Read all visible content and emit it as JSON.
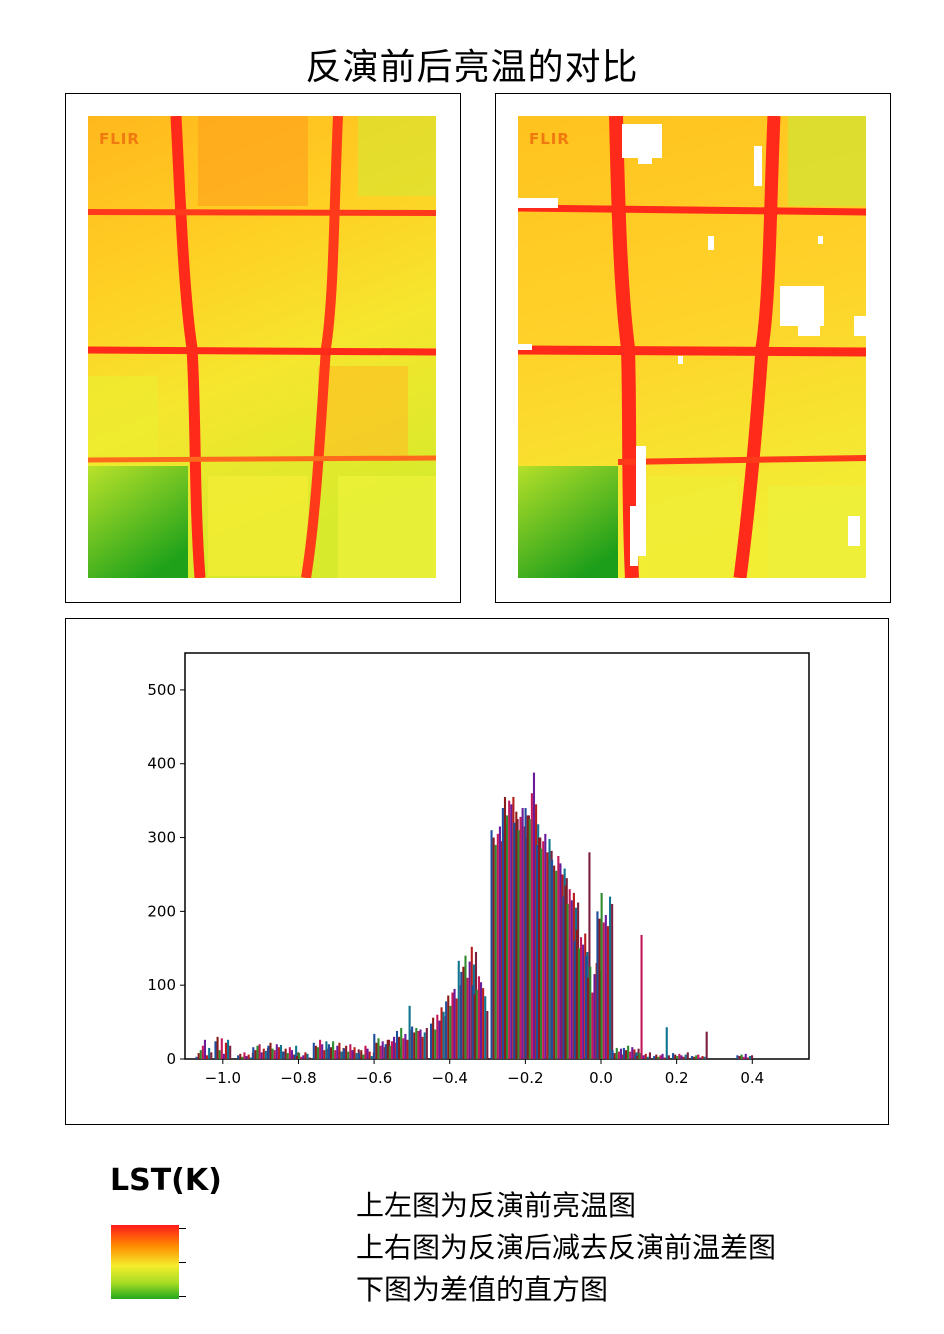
{
  "title": "反演前后亮温的对比",
  "images": {
    "left_logo": "FLIR",
    "right_logo": "FLIR"
  },
  "legend": {
    "title": "LST(K)",
    "colors": [
      "#ff1a1a",
      "#ff8a00",
      "#f6ec2c",
      "#a8dd24",
      "#22a81c"
    ]
  },
  "notes": [
    "上左图为反演前亮温图",
    "上右图为反演后减去反演前温差图",
    "下图为差值的直方图"
  ],
  "chart_data": {
    "type": "bar",
    "title": "",
    "xlabel": "",
    "ylabel": "",
    "xlim": [
      -1.1,
      0.55
    ],
    "ylim": [
      0,
      550
    ],
    "xticks": [
      -1.0,
      -0.8,
      -0.6,
      -0.4,
      -0.2,
      0.0,
      0.2,
      0.4
    ],
    "xtick_labels": [
      "−1.0",
      "−0.8",
      "−0.6",
      "−0.4",
      "−0.2",
      "0.0",
      "0.2",
      "0.4"
    ],
    "yticks": [
      0,
      100,
      200,
      300,
      400,
      500
    ],
    "ytick_labels": [
      "0",
      "100",
      "200",
      "300",
      "400",
      "500"
    ],
    "grid": false,
    "colors": [
      "#1f4e9c",
      "#8b1c1c",
      "#2e8b2e",
      "#c2185b",
      "#6a1b9a",
      "#b71c1c",
      "#0e7490",
      "#7a1f3d"
    ],
    "bins": [
      {
        "x": -1.05,
        "values": [
          3,
          8,
          12,
          18,
          26,
          5,
          15,
          9
        ]
      },
      {
        "x": -1.0,
        "values": [
          24,
          30,
          12,
          28,
          7,
          22,
          26,
          18
        ]
      },
      {
        "x": -0.94,
        "values": [
          5,
          7,
          3,
          9,
          4,
          6,
          2,
          8
        ]
      },
      {
        "x": -0.9,
        "values": [
          16,
          12,
          18,
          20,
          9,
          14,
          11,
          15
        ]
      },
      {
        "x": -0.86,
        "values": [
          18,
          22,
          14,
          12,
          20,
          16,
          19,
          10
        ]
      },
      {
        "x": -0.82,
        "values": [
          10,
          14,
          8,
          16,
          12,
          6,
          18,
          9
        ]
      },
      {
        "x": -0.79,
        "values": [
          6,
          4,
          8,
          3,
          5,
          9,
          7,
          2
        ]
      },
      {
        "x": -0.74,
        "values": [
          22,
          18,
          16,
          26,
          20,
          12,
          24,
          14
        ]
      },
      {
        "x": -0.7,
        "values": [
          20,
          16,
          24,
          12,
          18,
          22,
          10,
          15
        ]
      },
      {
        "x": -0.66,
        "values": [
          14,
          18,
          10,
          20,
          12,
          16,
          8,
          13
        ]
      },
      {
        "x": -0.62,
        "values": [
          8,
          12,
          6,
          18,
          14,
          10,
          4,
          9
        ]
      },
      {
        "x": -0.58,
        "values": [
          34,
          22,
          28,
          18,
          24,
          16,
          20,
          26
        ]
      },
      {
        "x": -0.55,
        "values": [
          20,
          26,
          18,
          24,
          30,
          22,
          28,
          16
        ]
      },
      {
        "x": -0.52,
        "values": [
          38,
          30,
          42,
          28,
          34,
          26,
          72,
          40
        ]
      },
      {
        "x": -0.48,
        "values": [
          44,
          36,
          42,
          38,
          40,
          30,
          36,
          42
        ]
      },
      {
        "x": -0.43,
        "values": [
          48,
          56,
          40,
          60,
          52,
          70,
          64,
          58
        ]
      },
      {
        "x": -0.39,
        "values": [
          78,
          86,
          72,
          90,
          95,
          82,
          133,
          100
        ]
      },
      {
        "x": -0.35,
        "values": [
          118,
          125,
          140,
          110,
          132,
          152,
          128,
          145
        ]
      },
      {
        "x": -0.32,
        "values": [
          100,
          88,
          94,
          112,
          104,
          96,
          85,
          65
        ]
      },
      {
        "x": -0.27,
        "values": [
          310,
          300,
          290,
          305,
          315,
          295,
          308,
          320
        ]
      },
      {
        "x": -0.24,
        "values": [
          340,
          355,
          330,
          350,
          345,
          355,
          320,
          325
        ]
      },
      {
        "x": -0.21,
        "values": [
          320,
          335,
          310,
          328,
          340,
          315,
          300,
          330
        ]
      },
      {
        "x": -0.18,
        "values": [
          340,
          330,
          325,
          360,
          388,
          345,
          318,
          300
        ]
      },
      {
        "x": -0.15,
        "values": [
          290,
          300,
          285,
          295,
          305,
          280,
          298,
          282
        ]
      },
      {
        "x": -0.11,
        "values": [
          270,
          262,
          255,
          275,
          265,
          250,
          258,
          245
        ]
      },
      {
        "x": -0.08,
        "values": [
          220,
          235,
          210,
          230,
          215,
          225,
          205,
          212
        ]
      },
      {
        "x": -0.05,
        "values": [
          160,
          175,
          150,
          165,
          155,
          170,
          145,
          280
        ]
      },
      {
        "x": -0.02,
        "values": [
          140,
          110,
          125,
          90,
          115,
          130,
          100,
          120
        ]
      },
      {
        "x": 0.01,
        "values": [
          200,
          190,
          225,
          185,
          195,
          180,
          220,
          210
        ]
      },
      {
        "x": 0.05,
        "values": [
          12,
          8,
          15,
          10,
          14,
          6,
          11,
          9
        ]
      },
      {
        "x": 0.08,
        "values": [
          15,
          12,
          18,
          10,
          16,
          13,
          9,
          14
        ]
      },
      {
        "x": 0.11,
        "values": [
          6,
          4,
          8,
          168,
          5,
          7,
          3,
          9
        ]
      },
      {
        "x": 0.16,
        "values": [
          4,
          6,
          3,
          5,
          7,
          2,
          43,
          5
        ]
      },
      {
        "x": 0.21,
        "values": [
          8,
          6,
          4,
          7,
          5,
          3,
          6,
          9
        ]
      },
      {
        "x": 0.26,
        "values": [
          4,
          3,
          5,
          6,
          2,
          4,
          3,
          37
        ]
      },
      {
        "x": 0.38,
        "values": [
          5,
          4,
          6,
          3,
          7,
          2,
          4,
          5
        ]
      }
    ]
  }
}
